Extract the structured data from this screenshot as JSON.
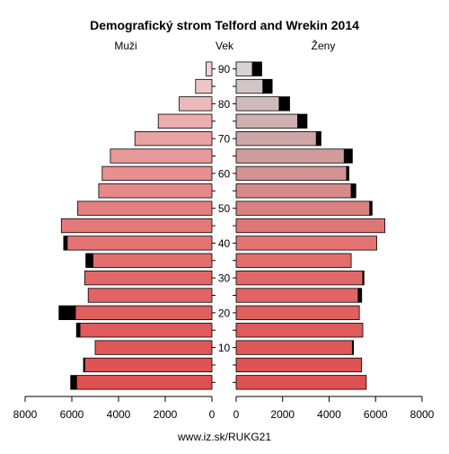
{
  "chart_data": {
    "type": "bar",
    "title": "Demografický strom Telford and Wrekin 2014",
    "left_label": "Muži",
    "center_label": "Vek",
    "right_label": "Ženy",
    "footer": "www.iz.sk/RUKG21",
    "xlim": [
      0,
      8000
    ],
    "x_ticks": [
      "8000",
      "6000",
      "4000",
      "2000",
      "0"
    ],
    "x_ticks_right": [
      "0",
      "2000",
      "4000",
      "6000",
      "8000"
    ],
    "age_ticks": [
      "10",
      "20",
      "30",
      "40",
      "50",
      "60",
      "70",
      "80",
      "90"
    ],
    "age_groups": [
      "0-4",
      "5-9",
      "10-14",
      "15-19",
      "20-24",
      "25-29",
      "30-34",
      "35-39",
      "40-44",
      "45-49",
      "50-54",
      "55-59",
      "60-64",
      "65-69",
      "70-74",
      "75-79",
      "80-84",
      "85-89",
      "90+"
    ],
    "series": [
      {
        "name": "Muži",
        "values": [
          5800,
          5450,
          5000,
          5650,
          5850,
          5300,
          5450,
          5100,
          6200,
          6450,
          5750,
          4850,
          4700,
          4350,
          3300,
          2300,
          1400,
          700,
          250
        ],
        "black_extra": [
          250,
          50,
          0,
          150,
          700,
          0,
          0,
          300,
          150,
          0,
          0,
          0,
          0,
          0,
          0,
          0,
          0,
          0,
          0
        ]
      },
      {
        "name": "Ženy",
        "values": [
          5600,
          5400,
          5000,
          5450,
          5300,
          5250,
          5450,
          4950,
          6050,
          6400,
          5750,
          4950,
          4750,
          4650,
          3450,
          2650,
          1850,
          1150,
          700
        ],
        "black_extra": [
          0,
          0,
          50,
          0,
          0,
          150,
          50,
          0,
          0,
          0,
          100,
          200,
          100,
          350,
          200,
          400,
          450,
          400,
          400
        ]
      }
    ],
    "male_colors": [
      "#df5050",
      "#df5353",
      "#e05757",
      "#e05b5b",
      "#e05f5f",
      "#e16363",
      "#e16868",
      "#e26d6d",
      "#e37373",
      "#e47979",
      "#e58080",
      "#e68888",
      "#e79090",
      "#e89999",
      "#e9a3a3",
      "#eaaeae",
      "#ebb9b9",
      "#edc5c5",
      "#efd2d2"
    ],
    "female_colors": [
      "#df5050",
      "#df5353",
      "#e05757",
      "#e05b5b",
      "#e05f5f",
      "#e16363",
      "#e16868",
      "#e26d6d",
      "#e37373",
      "#dd7777",
      "#d98080",
      "#d68a8a",
      "#d39393",
      "#d09c9c",
      "#cfa6a6",
      "#ceb0b0",
      "#cfbaba",
      "#d2c5c5",
      "#d8d2d2"
    ]
  }
}
